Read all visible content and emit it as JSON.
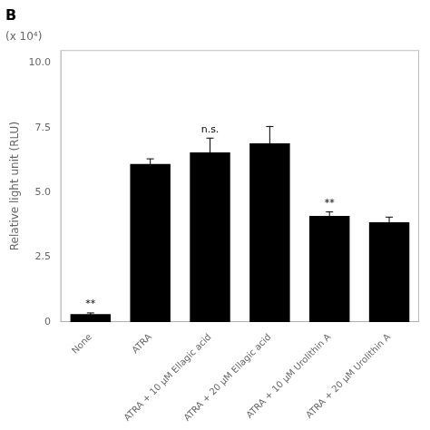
{
  "chart_data": {
    "type": "bar",
    "title": "B",
    "categories": [
      "None",
      "ATRA",
      "ATRA + 10 μM Ellagic acid",
      "ATRA + 20 μM Ellagic acid",
      "ATRA + 10 μM Urolithin A",
      "ATRA + 20 μM Urolithin A"
    ],
    "values": [
      0.3,
      6.1,
      6.55,
      6.9,
      4.1,
      3.85
    ],
    "errors": [
      0.05,
      0.2,
      0.55,
      0.65,
      0.15,
      0.2
    ],
    "significance": [
      "**",
      null,
      "n.s.",
      null,
      "**",
      null
    ],
    "color": "#000000",
    "ylabel": "Relative light unit (RLU)",
    "annotations": [
      "(x 10⁴)"
    ],
    "ylim": [
      0,
      10.5
    ],
    "yticks": [
      0,
      2.5,
      {
        "value": 5,
        "label": "5.0"
      },
      7.5,
      {
        "value": 10,
        "label": "10.0"
      }
    ],
    "grid": false
  }
}
